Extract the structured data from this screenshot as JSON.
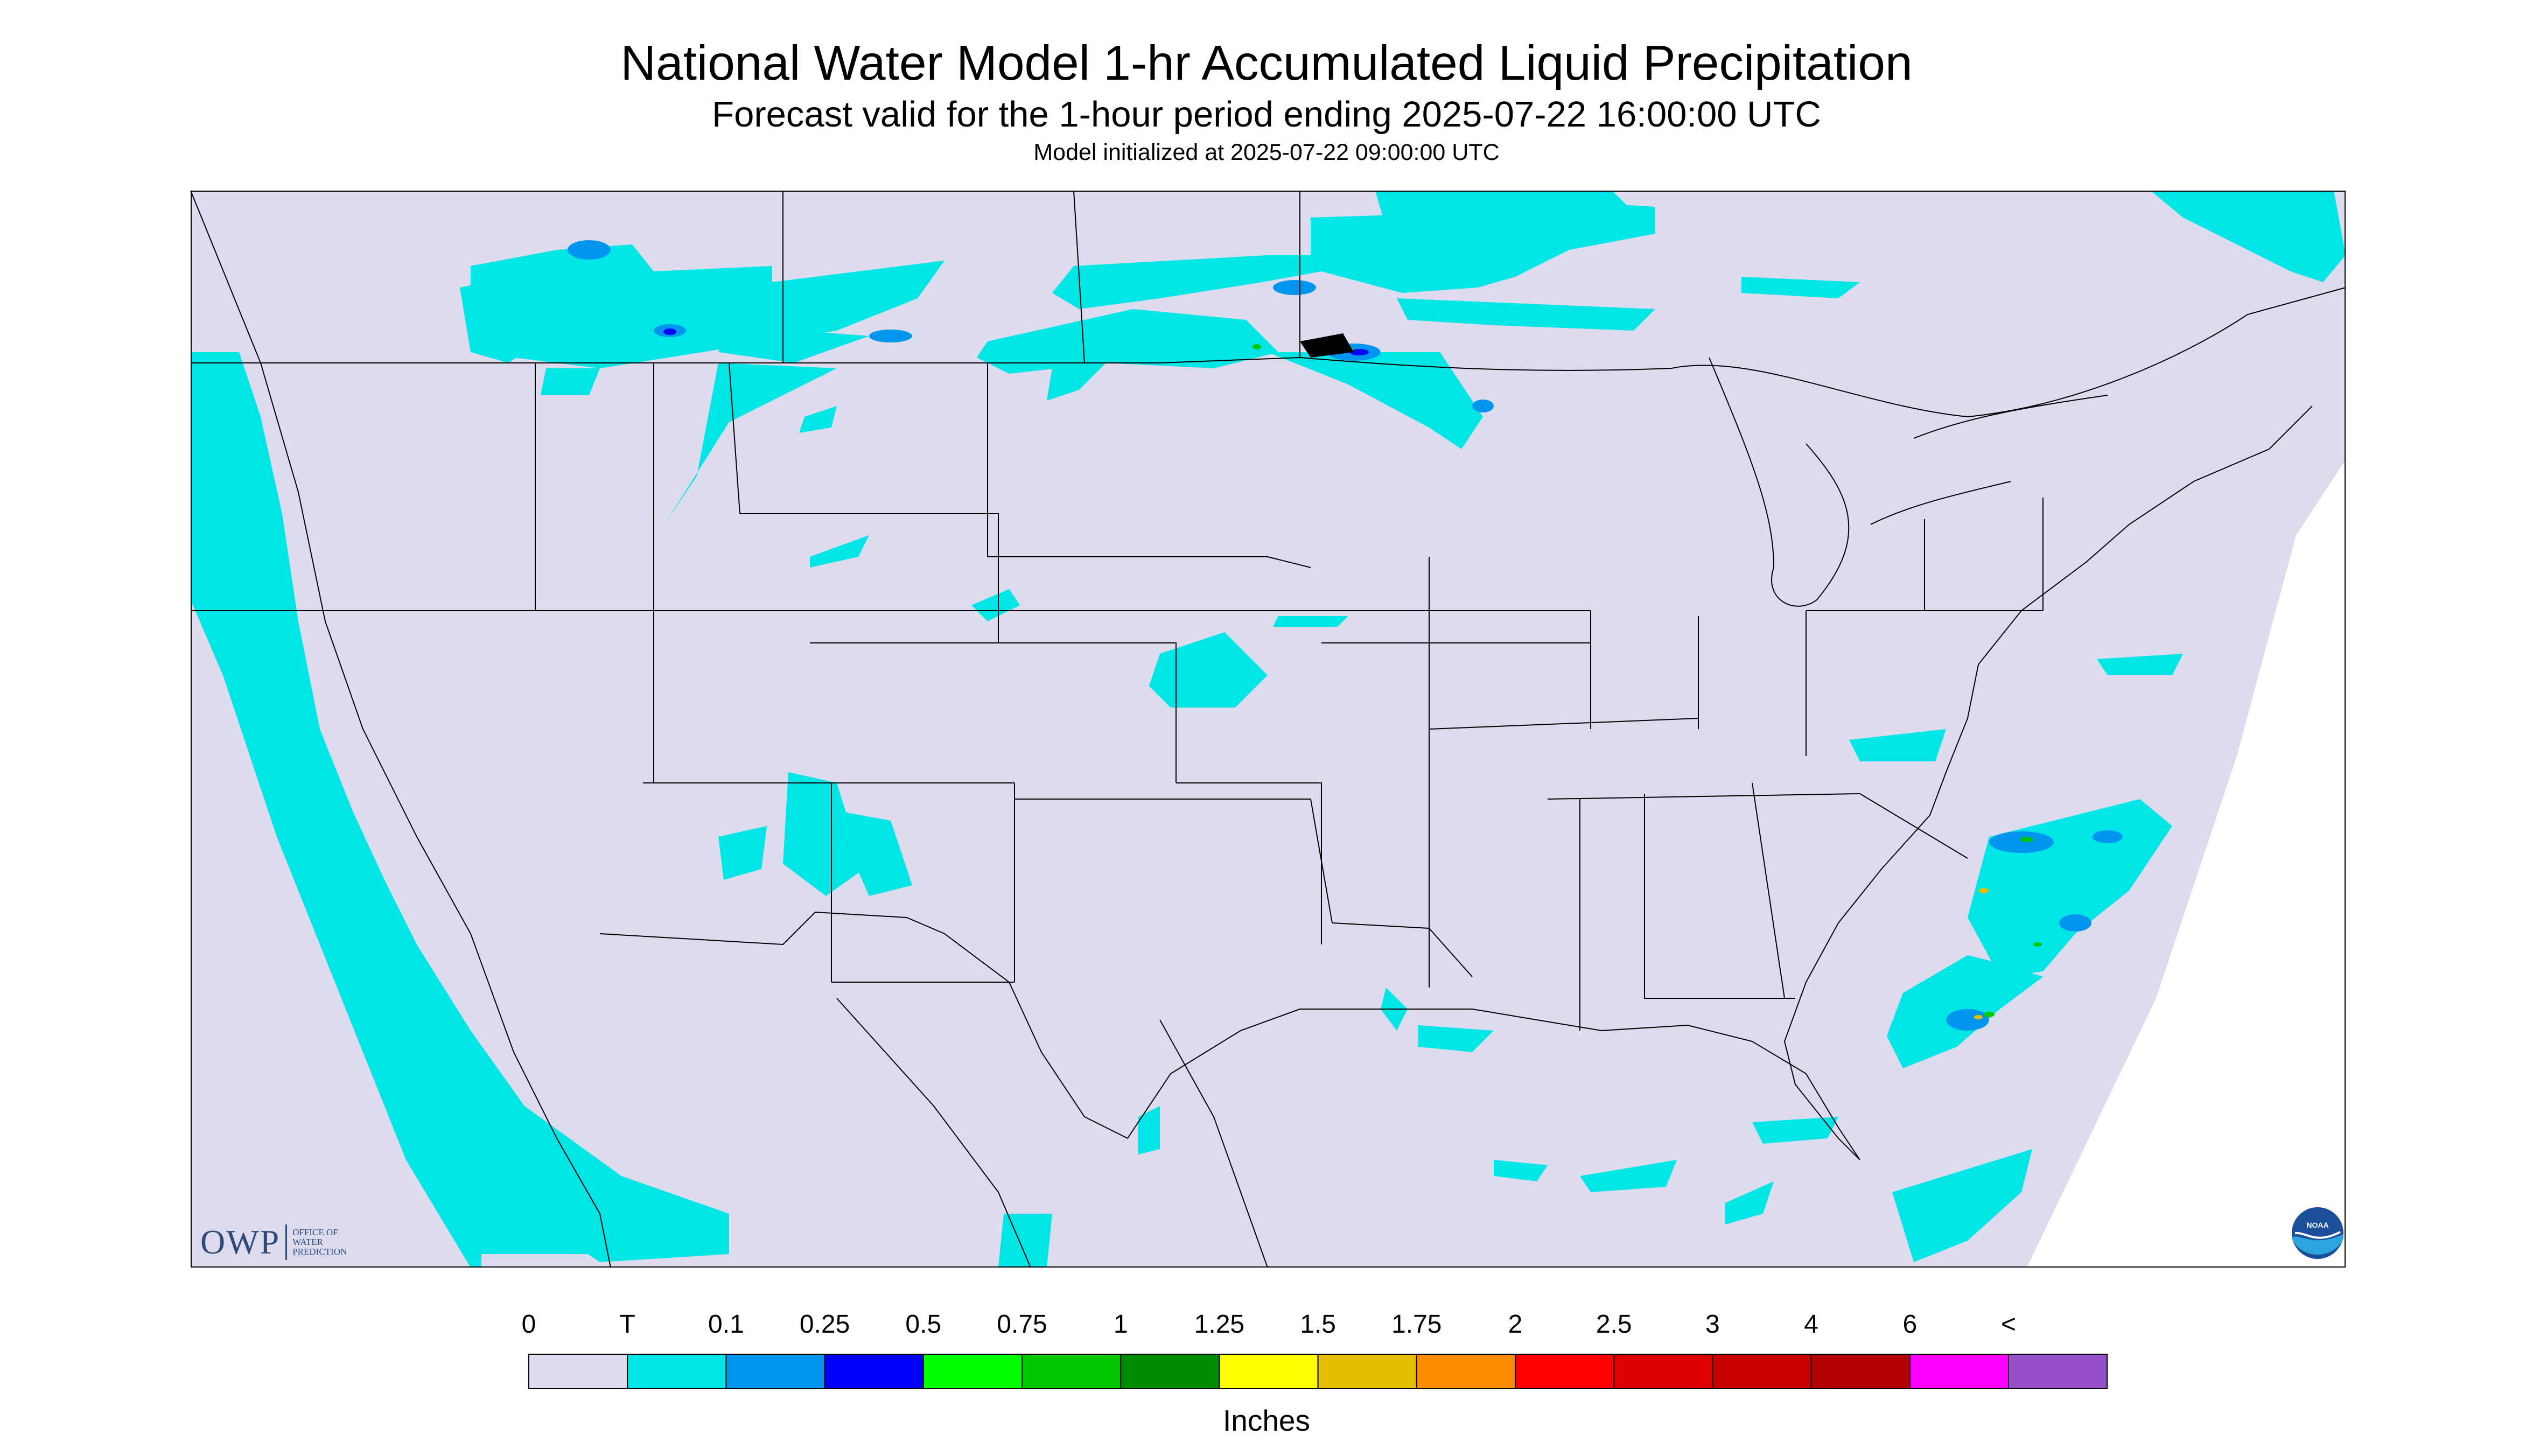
{
  "header": {
    "title": "National Water Model 1-hr Accumulated Liquid Precipitation",
    "subtitle": "Forecast valid for the 1-hour period ending 2025-07-22 16:00:00 UTC",
    "init": "Model initialized at 2025-07-22 09:00:00 UTC"
  },
  "logos": {
    "owp_mark": "OWP",
    "owp_line1": "OFFICE OF",
    "owp_line2": "WATER",
    "owp_line3": "PREDICTION",
    "noaa_mark": "NOAA"
  },
  "legend": {
    "units": "Inches",
    "labels": [
      "0",
      "T",
      "0.1",
      "0.25",
      "0.5",
      "0.75",
      "1",
      "1.25",
      "1.5",
      "1.75",
      "2",
      "2.5",
      "3",
      "4",
      "6",
      "<"
    ],
    "colors": [
      "#dcdcee",
      "#00e5e5",
      "#0096f0",
      "#0000ff",
      "#00ff00",
      "#00c800",
      "#008c00",
      "#ffff00",
      "#e6be00",
      "#ff8c00",
      "#ff0000",
      "#dc0000",
      "#c80000",
      "#b40000",
      "#ff00ff",
      "#9650c8"
    ]
  },
  "map": {
    "background_color": "#dcdcee",
    "outside_color": "#ffffff",
    "ocean_precip_color": "#00e5e5"
  }
}
